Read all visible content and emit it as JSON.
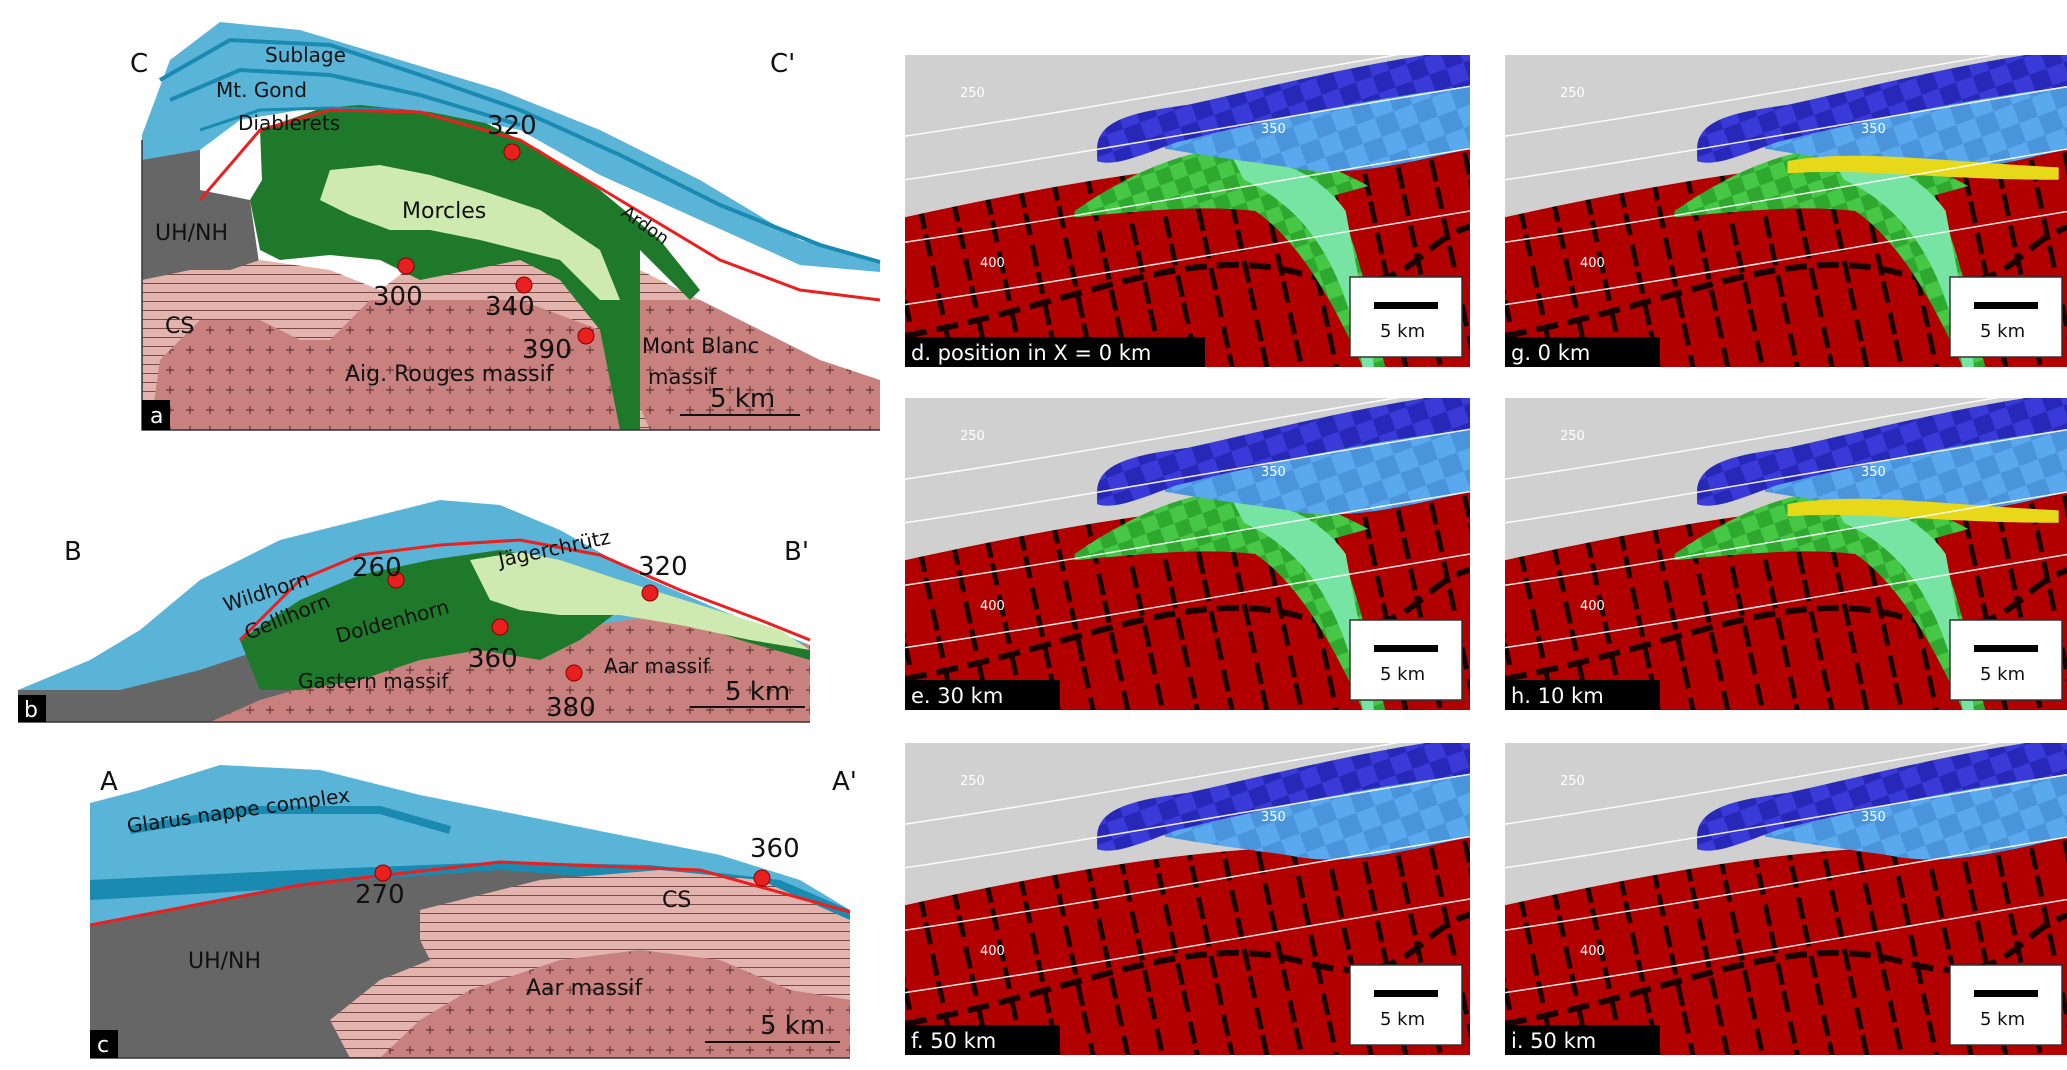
{
  "sections": [
    {
      "id": "a",
      "end_left": "C",
      "end_right": "C'",
      "units": [
        "Sublage",
        "Mt. Gond",
        "Diablerets",
        "Morcles",
        "UH/NH",
        "Ardon",
        "CS",
        "Aig. Rouges massif",
        "Mont Blanc",
        "massif"
      ],
      "temps": [
        "320",
        "300",
        "340",
        "390"
      ],
      "scale": "5 km"
    },
    {
      "id": "b",
      "end_left": "B",
      "end_right": "B'",
      "units": [
        "Wildhorn",
        "Gellihorn",
        "Doldenhorn",
        "Jägerchrütz",
        "Gastern massif",
        "Aar massif"
      ],
      "temps": [
        "260",
        "320",
        "360",
        "380"
      ],
      "scale": "5 km"
    },
    {
      "id": "c",
      "end_left": "A",
      "end_right": "A'",
      "units": [
        "Glarus nappe complex",
        "UH/NH",
        "CS",
        "Aar massif"
      ],
      "temps": [
        "270",
        "360"
      ],
      "scale": "5 km"
    }
  ],
  "models": [
    {
      "id": "d",
      "caption": "d. position in X = 0 km",
      "iso": [
        "250",
        "350",
        "400"
      ],
      "scale": "5 km"
    },
    {
      "id": "g",
      "caption": "g. 0 km",
      "iso": [
        "250",
        "350",
        "400"
      ],
      "scale": "5 km"
    },
    {
      "id": "e",
      "caption": "e. 30 km",
      "iso": [
        "250",
        "350",
        "400"
      ],
      "scale": "5 km"
    },
    {
      "id": "h",
      "caption": "h. 10 km",
      "iso": [
        "250",
        "350",
        "400"
      ],
      "scale": "5 km"
    },
    {
      "id": "f",
      "caption": "f. 50 km",
      "iso": [
        "250",
        "350",
        "400"
      ],
      "scale": "5 km"
    },
    {
      "id": "i",
      "caption": "i. 50 km",
      "iso": [
        "250",
        "350",
        "400"
      ],
      "scale": "5 km"
    }
  ],
  "colors": {
    "sky": "#5ab4d8",
    "deep": "#1a8ab0",
    "green": "#1e7a2a",
    "lightgreen": "#cfeab0",
    "grey": "#666666",
    "rock": "#c8817e",
    "red": "#e82020",
    "model_red": "#b20000",
    "model_grey": "#d0d0d0",
    "model_blue": "#3a3ad8",
    "model_lblue": "#5aa8ee",
    "model_green": "#3cc03c"
  }
}
